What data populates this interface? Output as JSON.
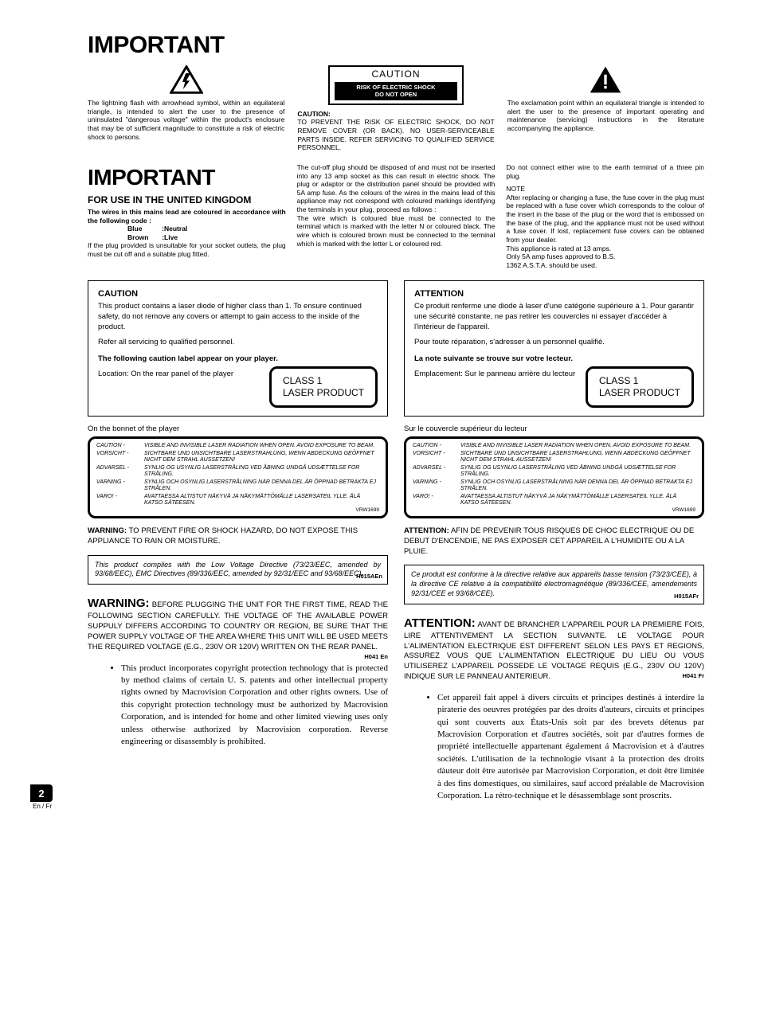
{
  "colors": {
    "black": "#000000",
    "white": "#ffffff"
  },
  "page_title": "IMPORTANT",
  "icons": {
    "lightning_text": "The lightning flash with arrowhead symbol, within an equilateral triangle, is intended to alert the user to the presence of uninsulated \"dangerous voltage\" within the product's enclosure that may be of sufficient magnitude to constitute a risk of electric shock to persons.",
    "exclamation_text": "The exclamation point within an equilateral triangle is intended to alert the user to the presence of important operating and maintenance (servicing) instructions in the literature accompanying the appliance."
  },
  "caution_box": {
    "top": "CAUTION",
    "bottom": "RISK OF ELECTRIC SHOCK\nDO NOT OPEN",
    "sub_head": "CAUTION:",
    "sub_body": "TO PREVENT THE RISK OF ELECTRIC SHOCK, DO NOT REMOVE COVER (OR BACK). NO USER-SERVICEABLE PARTS INSIDE. REFER SERVICING TO QUALIFIED SERVICE PERSONNEL."
  },
  "uk": {
    "title": "IMPORTANT",
    "sub": "FOR USE IN THE UNITED KINGDOM",
    "wires_head": "The wires in this mains lead are coloured in accordance with the following code :",
    "wire1_a": "Blue",
    "wire1_b": ":Neutral",
    "wire2_a": "Brown",
    "wire2_b": ":Live",
    "wires_tail": "If the plug provided is unsuitable for your socket outlets, the plug must be cut off and a suitable plug fitted.",
    "col2": "The cut-off plug should be disposed of and must not be inserted into any 13 amp socket as this can result in electric shock. The plug or adaptor or the distribution panel should be provided with 5A amp fuse. As the colours of the wires in the mains lead of this appliance may not correspond with coloured markings identifying the terminals in your plug, proceed as follows :\nThe wire which is coloured blue must be connected to the terminal which is marked with the letter N or coloured black. The wire which is coloured brown must be connected to the terminal which is marked with the letter L or coloured red.",
    "col3_a": "Do not connect either wire to the earth terminal of a three pin plug.",
    "col3_note": "NOTE",
    "col3_b": "After replacing or changing a fuse, the fuse cover in the plug must be replaced with a fuse cover which corresponds to the colour of the insert in the base of the plug or the word that is embossed on the base of the plug, and the appliance must not be used without a fuse cover. If lost, replacement fuse covers can be obtained from your dealer.\nThis appliance is rated at 13 amps.\nOnly 5A amp fuses approved to B.S.\n1362 A.S.T.A. should be used."
  },
  "caution_section": {
    "title": "CAUTION",
    "p1": "This product contains a laser diode of higher class than 1. To ensure continued safety, do not remove any covers or attempt to gain access to the inside of the product.",
    "p2": "Refer all servicing to qualified personnel.",
    "label_line": "The following caution label appear on your player.",
    "loc": "Location: On the rear panel of the player",
    "class1_a": "CLASS 1",
    "class1_b": "LASER PRODUCT",
    "bonnet": "On the bonnet of the player"
  },
  "attention_section": {
    "title": "ATTENTION",
    "p1": "Ce produit renferme une diode à laser d'une catégorie supérieure à 1. Pour garantir une sécurité constante, ne pas retirer les couvercles ni essayer d'accéder à l'intérieur de l'appareil.",
    "p2": "Pour toute réparation, s'adresser à un personnel qualifié.",
    "label_line": "La note suivante se trouve sur votre lecteur.",
    "loc": "Emplacement: Sur le panneau arrière du lecteur",
    "bonnet": "Sur le couvercle supérieur du lecteur"
  },
  "laser_table": [
    {
      "h": "CAUTION",
      "t": "VISIBLE AND INVISIBLE LASER RADIATION WHEN OPEN. AVOID EXPOSURE TO BEAM."
    },
    {
      "h": "VORSICHT",
      "t": "SICHTBARE UND UNSICHTBARE LASERSTRAHLUNG, WENN ABDECKUNG GEÖFFNET NICHT DEM STRAHL AUSSETZEN!"
    },
    {
      "h": "ADVARSEL",
      "t": "SYNLIG OG USYNLIG LASERSTRÅLING VED ÅBNING UNDGÅ UDSÆTTELSE FOR STRÅLING."
    },
    {
      "h": "VARNING",
      "t": "SYNLIG OCH OSYNLIG LASERSTRÅLNING NÄR DENNA DEL ÄR ÖPPNAD BETRAKTA EJ STRÅLEN."
    },
    {
      "h": "VARO!",
      "t": "AVATTAESSA ALTISTUT NÄKYVÄ JA NÄKYMÄTTÖMÄLLE LASERSATEIL YLLE. ÄLÄ KATSO SÄTEESEN."
    }
  ],
  "laser_table_code": "VRW1699",
  "warning_moisture": {
    "head": "WARNING:",
    "body": " TO PREVENT FIRE OR SHOCK HAZARD, DO NOT EXPOSE THIS APPLIANCE TO RAIN OR MOISTURE."
  },
  "attention_moisture": {
    "head": "ATTENTION:",
    "body": " AFIN DE PREVENIR TOUS RISQUES DE CHOC ELECTRIQUE OU DE DEBUT D'ENCENDIE, NE PAS EXPOSER CET APPAREIL A L'HUMIDITE OU A LA PLUIE."
  },
  "compliance_en": {
    "text": "This product complies with the Low Voltage Directive (73/23/EEC, amended by 93/68/EEC), EMC Directives (89/336/EEC, amended by 92/31/EEC and 93/68/EEC).",
    "code": "H015AEn"
  },
  "compliance_fr": {
    "text": "Ce produit est conforme à la directive relative aux appareils basse tension (73/23/CEE), à la directive CE relative à la compatibilité électromagnétique (89/336/CEE, amendements 92/31/CEE et 93/68/CEE).",
    "code": "H015AFr"
  },
  "warn_plug_en": {
    "head": "WARNING:",
    "body": " BEFORE PLUGGING THE UNIT FOR THE FIRST TIME, READ THE FOLLOWING SECTION CAREFULLY. THE VOLTAGE OF THE AVAILABLE POWER SUPPULY DIFFERS ACCORDING TO COUNTRY OR REGION, BE SURE THAT THE POWER SUPPLY VOLTAGE OF THE AREA WHERE THIS UNIT WILL BE USED MEETS THE REQUIRED VOLTAGE (E.G., 230V OR 120V) WRITTEN ON THE REAR PANEL.",
    "code": "H041 En"
  },
  "warn_plug_fr": {
    "head": "ATTENTION:",
    "body": " AVANT DE BRANCHER L'APPAREIL POUR LA PREMIERE FOIS, LIRE ATTENTIVEMENT LA SECTION SUIVANTE. LE VOLTAGE POUR L'ALIMENTATION ELECTRIQUE EST DIFFERENT SELON LES PAYS ET REGIONS, ASSUREZ VOUS QUE L'ALIMENTATION ELECTRIQUE DU LIEU OU VOUS UTILISEREZ L'APPAREIL POSSEDE LE VOLTAGE REQUIS (E.G., 230V OU 120V) INDIQUE SUR LE PANNEAU ANTERIEUR.",
    "code": "H041 Fr"
  },
  "bullet_en": "This product incorporates copyright protection technology that is protected by method claims of certain U. S. patents and other intellectual property rights owned by Macrovision Corporation and other rights owners. Use of this copyright protection technology must be authorized by Macrovision Corporation, and is intended for home and other limited viewing uses only unless otherwise authorized by Macrovision corporation. Reverse engineering or disassembly is prohibited.",
  "bullet_fr": "Cet appareil fait appel à divers circuits et principes destinés á interdire la piraterie des oeuvres protégées par des droits d'auteurs, circuits et principes qui sont couverts aux États-Unis soit par des brevets détenus par Macrovision Corporation et d'autres sociétés, soit par d'autres formes de propriété intellectuelle appartenant également á Macrovision et à d'autres sociétés. L'utilisation de la technologie visant à la protection des droits dàuteur doit être autorisée par Macrovision Corporation, et doit être limitée à des fins domestiques, ou similaires, sauf accord préalable de Macrovision Corporation. La rétro-technique et le désassemblage sont proscrits.",
  "page_number": "2",
  "page_lang": "En / Fr"
}
